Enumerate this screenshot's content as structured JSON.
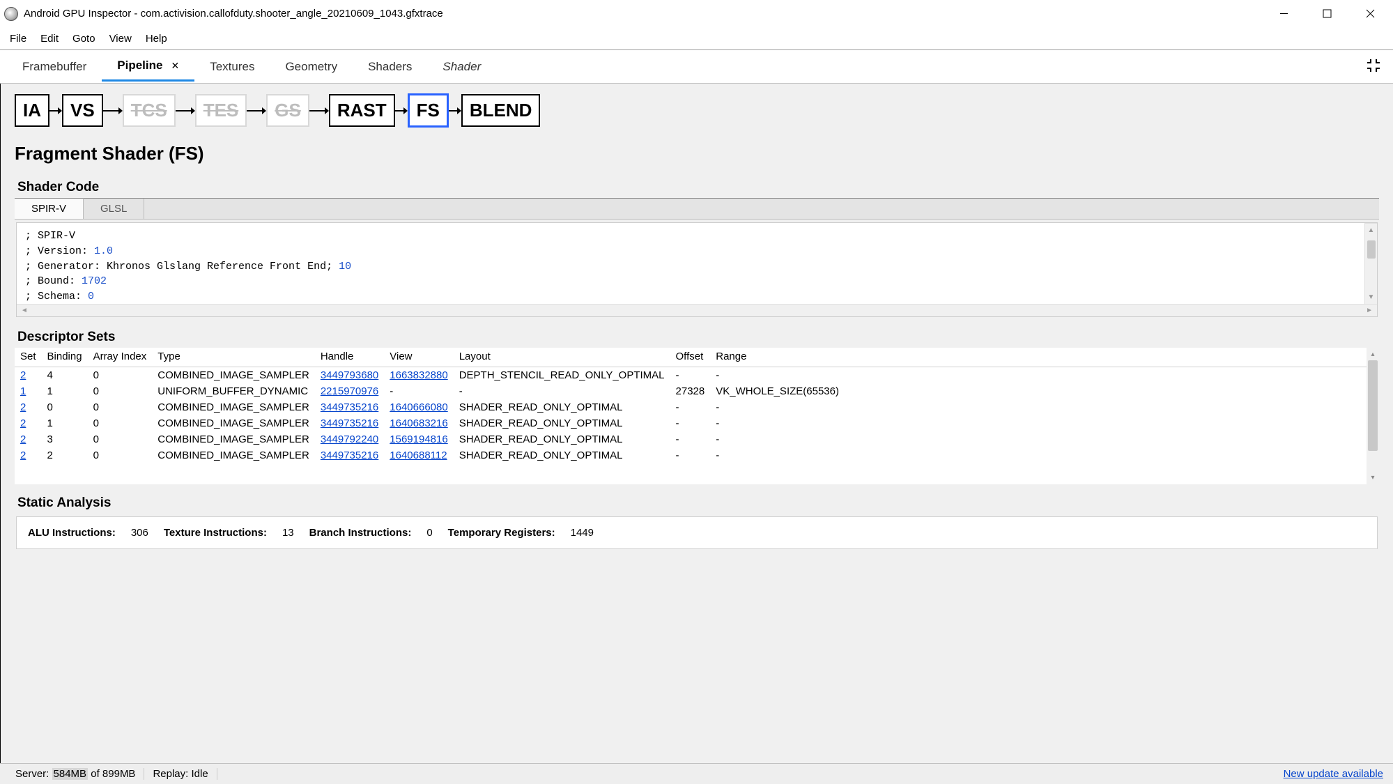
{
  "window": {
    "title": "Android GPU Inspector - com.activision.callofduty.shooter_angle_20210609_1043.gfxtrace"
  },
  "menu": {
    "items": [
      "File",
      "Edit",
      "Goto",
      "View",
      "Help"
    ]
  },
  "tabs": {
    "items": [
      {
        "label": "Framebuffer",
        "active": false,
        "closable": false,
        "italic": false
      },
      {
        "label": "Pipeline",
        "active": true,
        "closable": true,
        "italic": false
      },
      {
        "label": "Textures",
        "active": false,
        "closable": false,
        "italic": false
      },
      {
        "label": "Geometry",
        "active": false,
        "closable": false,
        "italic": false
      },
      {
        "label": "Shaders",
        "active": false,
        "closable": false,
        "italic": false
      },
      {
        "label": "Shader",
        "active": false,
        "closable": false,
        "italic": true
      }
    ]
  },
  "pipeline": {
    "stages": [
      {
        "label": "IA",
        "disabled": false,
        "selected": false
      },
      {
        "label": "VS",
        "disabled": false,
        "selected": false
      },
      {
        "label": "TCS",
        "disabled": true,
        "selected": false
      },
      {
        "label": "TES",
        "disabled": true,
        "selected": false
      },
      {
        "label": "GS",
        "disabled": true,
        "selected": false
      },
      {
        "label": "RAST",
        "disabled": false,
        "selected": false
      },
      {
        "label": "FS",
        "disabled": false,
        "selected": true
      },
      {
        "label": "BLEND",
        "disabled": false,
        "selected": false
      }
    ]
  },
  "heading": "Fragment Shader (FS)",
  "shader_code": {
    "section_title": "Shader Code",
    "subtabs": [
      {
        "label": "SPIR-V",
        "active": true
      },
      {
        "label": "GLSL",
        "active": false
      }
    ],
    "lines": [
      {
        "pre": "; SPIR-V",
        "num": ""
      },
      {
        "pre": "; Version: ",
        "num": "1.0"
      },
      {
        "pre": "; Generator: Khronos Glslang Reference Front End; ",
        "num": "10"
      },
      {
        "pre": "; Bound: ",
        "num": "1702"
      },
      {
        "pre": "; Schema: ",
        "num": "0"
      }
    ]
  },
  "descriptor_sets": {
    "section_title": "Descriptor Sets",
    "columns": [
      "Set",
      "Binding",
      "Array Index",
      "Type",
      "Handle",
      "View",
      "Layout",
      "Offset",
      "Range"
    ],
    "rows": [
      {
        "set": "2",
        "binding": "4",
        "array_index": "0",
        "type": "COMBINED_IMAGE_SAMPLER",
        "handle": "3449793680",
        "view": "1663832880",
        "layout": "DEPTH_STENCIL_READ_ONLY_OPTIMAL",
        "offset": "-",
        "range": "-"
      },
      {
        "set": "1",
        "binding": "1",
        "array_index": "0",
        "type": "UNIFORM_BUFFER_DYNAMIC",
        "handle": "2215970976",
        "view": "-",
        "layout": "-",
        "offset": "27328",
        "range": "VK_WHOLE_SIZE(65536)"
      },
      {
        "set": "2",
        "binding": "0",
        "array_index": "0",
        "type": "COMBINED_IMAGE_SAMPLER",
        "handle": "3449735216",
        "view": "1640666080",
        "layout": "SHADER_READ_ONLY_OPTIMAL",
        "offset": "-",
        "range": "-"
      },
      {
        "set": "2",
        "binding": "1",
        "array_index": "0",
        "type": "COMBINED_IMAGE_SAMPLER",
        "handle": "3449735216",
        "view": "1640683216",
        "layout": "SHADER_READ_ONLY_OPTIMAL",
        "offset": "-",
        "range": "-"
      },
      {
        "set": "2",
        "binding": "3",
        "array_index": "0",
        "type": "COMBINED_IMAGE_SAMPLER",
        "handle": "3449792240",
        "view": "1569194816",
        "layout": "SHADER_READ_ONLY_OPTIMAL",
        "offset": "-",
        "range": "-"
      },
      {
        "set": "2",
        "binding": "2",
        "array_index": "0",
        "type": "COMBINED_IMAGE_SAMPLER",
        "handle": "3449735216",
        "view": "1640688112",
        "layout": "SHADER_READ_ONLY_OPTIMAL",
        "offset": "-",
        "range": "-"
      }
    ]
  },
  "static_analysis": {
    "section_title": "Static Analysis",
    "items": [
      {
        "label": "ALU Instructions:",
        "value": "306"
      },
      {
        "label": "Texture Instructions:",
        "value": "13"
      },
      {
        "label": "Branch Instructions:",
        "value": "0"
      },
      {
        "label": "Temporary Registers:",
        "value": "1449"
      }
    ]
  },
  "statusbar": {
    "server_label": "Server:",
    "server_mem": "584MB",
    "server_of": "of 899MB",
    "replay": "Replay:  Idle",
    "update": "New update available"
  }
}
